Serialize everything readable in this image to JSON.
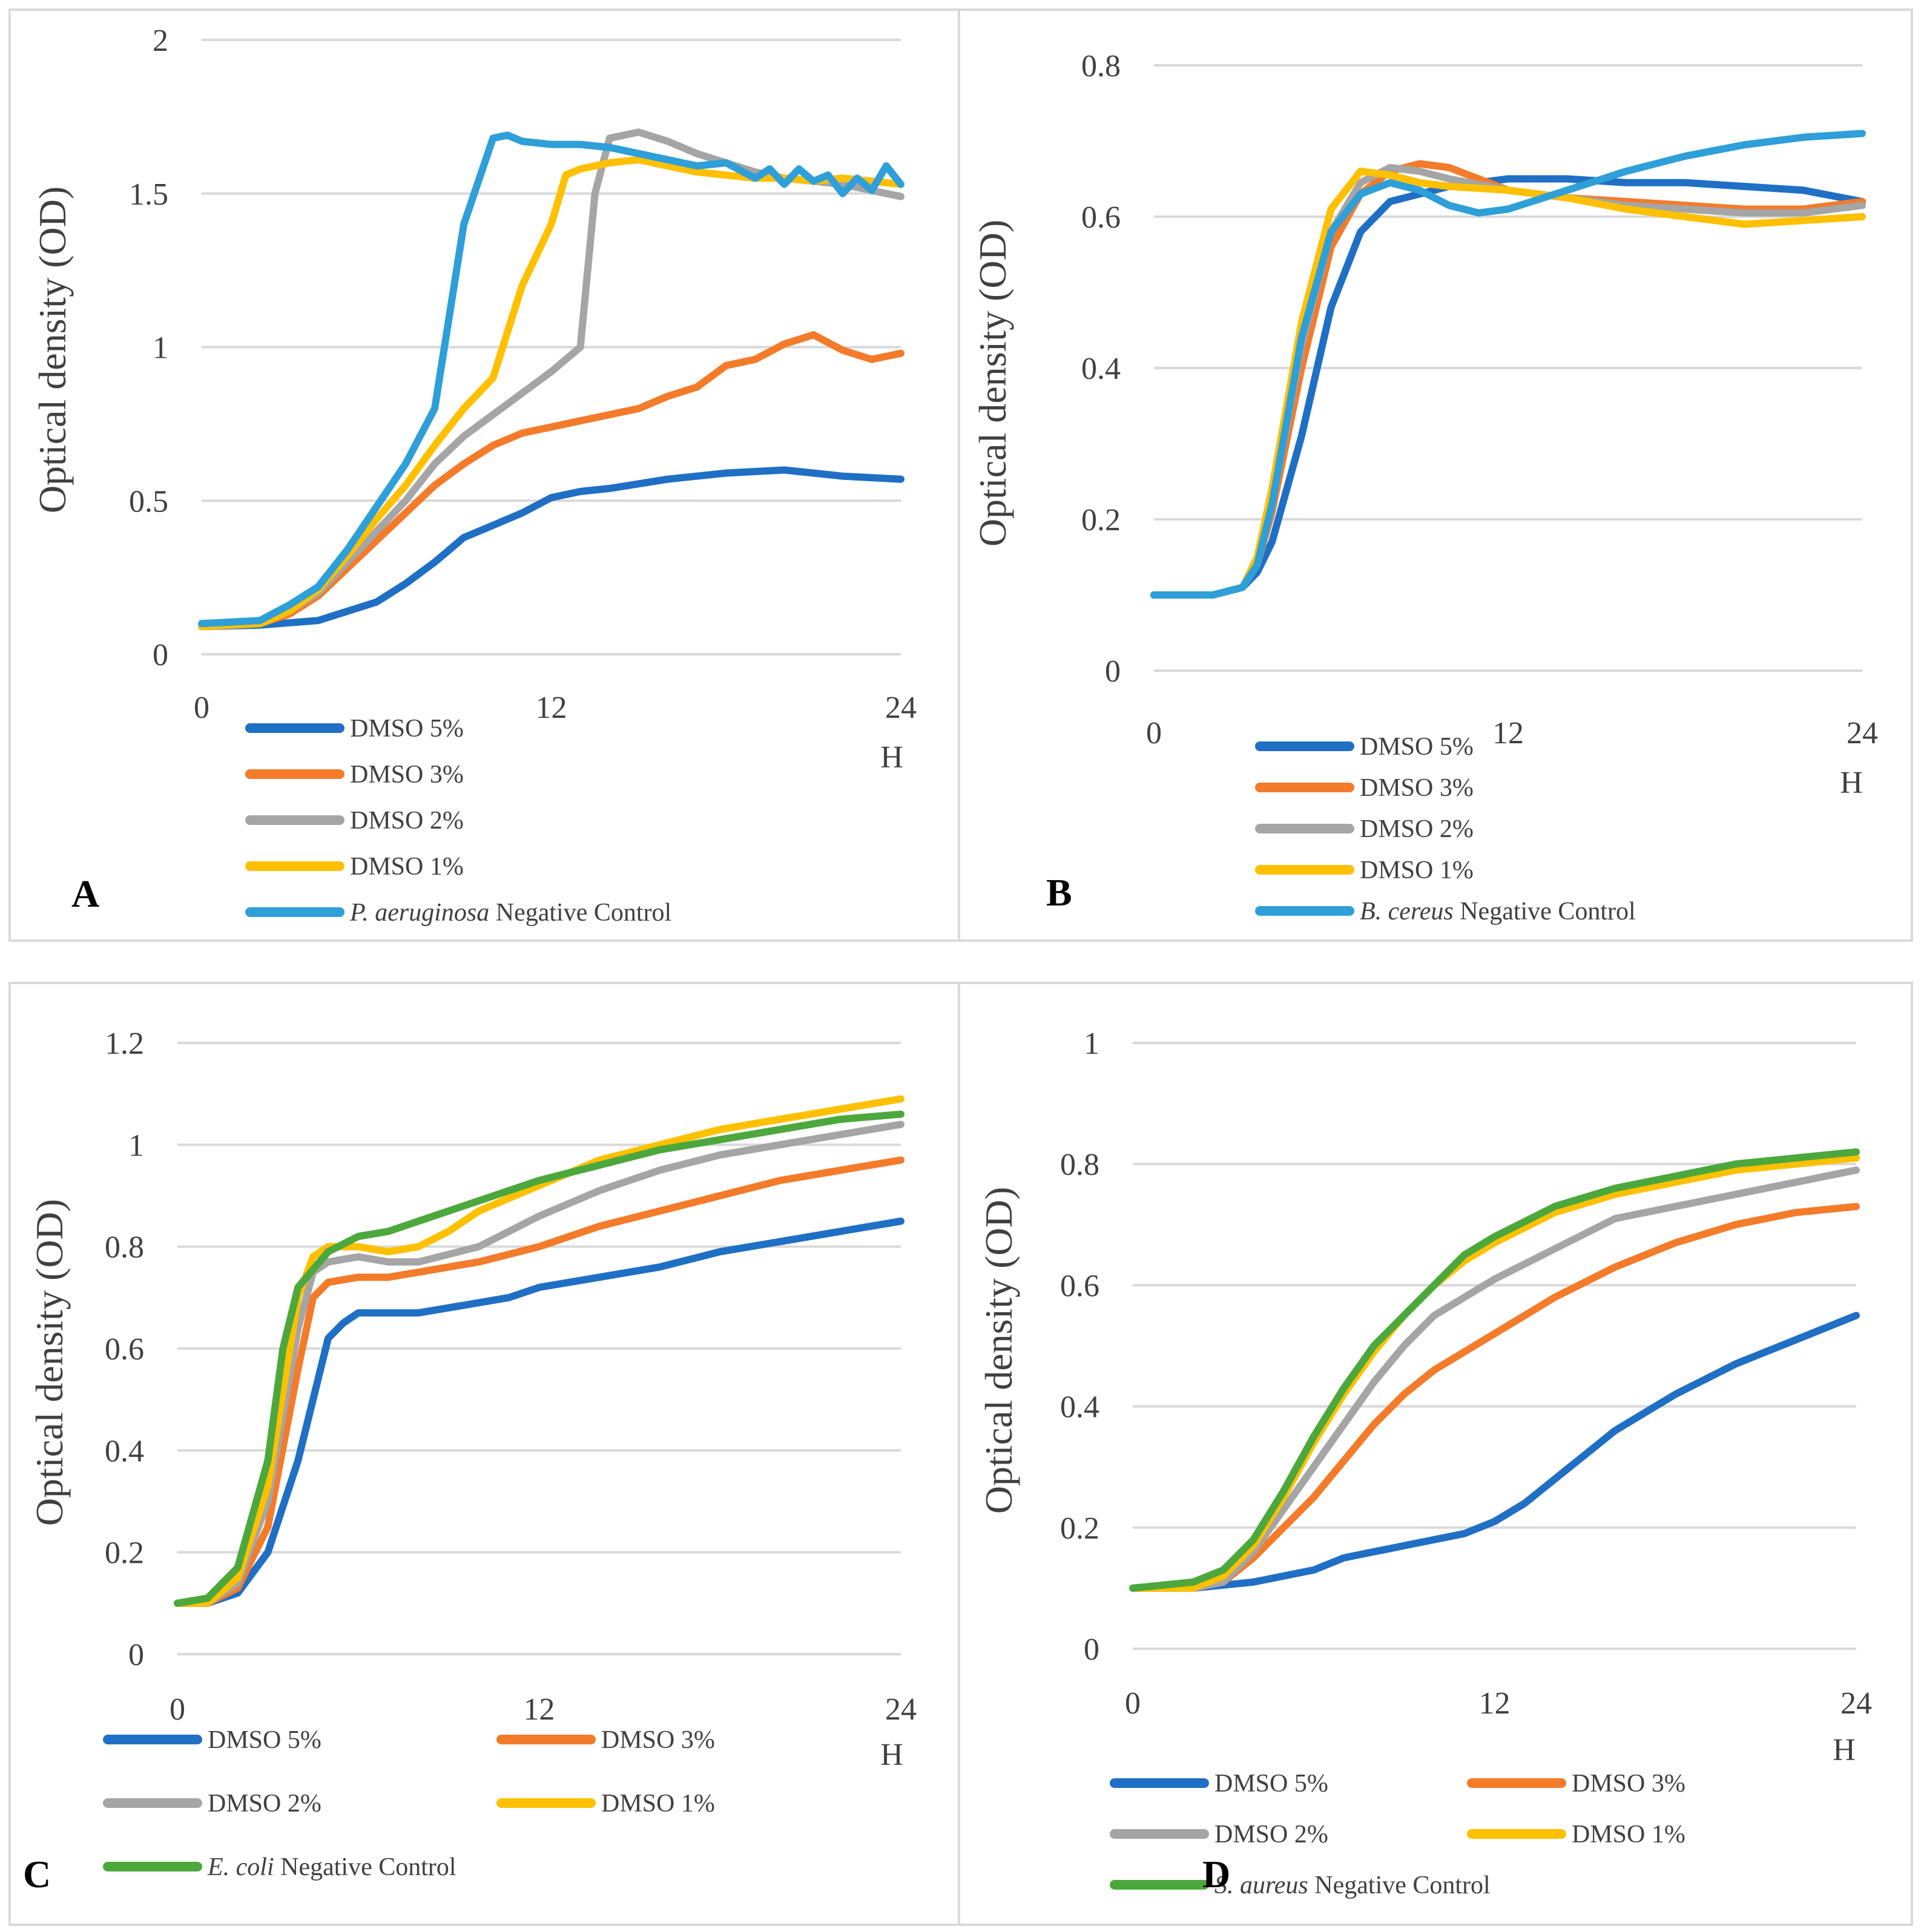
{
  "chart_data": [
    {
      "type": "line",
      "panel_label": "A",
      "ylabel": "Optical density (OD)",
      "xunit": "H",
      "xlim": [
        0,
        24
      ],
      "ylim": [
        0,
        2
      ],
      "xticks": [
        "0",
        "12",
        "24"
      ],
      "yticks": [
        "0",
        "0.5",
        "1",
        "1.5",
        "2"
      ],
      "series": [
        {
          "name": "DMSO 5%",
          "color": "#1f6fc5",
          "x": [
            0,
            2,
            4,
            6,
            7,
            8,
            9,
            10,
            11,
            12,
            13,
            14,
            16,
            18,
            20,
            22,
            24
          ],
          "values": [
            0.09,
            0.095,
            0.11,
            0.17,
            0.23,
            0.3,
            0.38,
            0.42,
            0.46,
            0.51,
            0.53,
            0.54,
            0.57,
            0.59,
            0.6,
            0.58,
            0.57
          ]
        },
        {
          "name": "DMSO 3%",
          "color": "#f47b2a",
          "x": [
            0,
            2,
            3,
            4,
            5,
            6,
            7,
            8,
            9,
            10,
            11,
            12,
            13,
            14,
            15,
            16,
            17,
            18,
            19,
            20,
            21,
            22,
            23,
            24
          ],
          "values": [
            0.09,
            0.1,
            0.13,
            0.19,
            0.28,
            0.37,
            0.46,
            0.55,
            0.62,
            0.68,
            0.72,
            0.74,
            0.76,
            0.78,
            0.8,
            0.84,
            0.87,
            0.94,
            0.96,
            1.01,
            1.04,
            0.99,
            0.96,
            0.98
          ]
        },
        {
          "name": "DMSO 2%",
          "color": "#a5a5a5",
          "x": [
            0,
            2,
            3,
            4,
            5,
            6,
            7,
            8,
            9,
            10,
            11,
            12,
            13,
            13.5,
            14,
            15,
            16,
            17,
            18,
            19,
            20,
            21,
            22,
            23,
            24
          ],
          "values": [
            0.09,
            0.1,
            0.14,
            0.2,
            0.3,
            0.4,
            0.5,
            0.62,
            0.71,
            0.78,
            0.85,
            0.92,
            1.0,
            1.5,
            1.68,
            1.7,
            1.67,
            1.63,
            1.6,
            1.57,
            1.55,
            1.54,
            1.53,
            1.51,
            1.49
          ]
        },
        {
          "name": "DMSO 1%",
          "color": "#ffc000",
          "x": [
            0,
            2,
            3,
            4,
            5,
            6,
            7,
            8,
            9,
            10,
            11,
            12,
            12.5,
            13,
            14,
            15,
            16,
            17,
            18,
            19,
            20,
            21,
            22,
            23,
            24
          ],
          "values": [
            0.09,
            0.1,
            0.14,
            0.21,
            0.32,
            0.44,
            0.55,
            0.68,
            0.8,
            0.9,
            1.2,
            1.4,
            1.56,
            1.58,
            1.6,
            1.61,
            1.59,
            1.57,
            1.56,
            1.55,
            1.55,
            1.54,
            1.55,
            1.54,
            1.53
          ]
        },
        {
          "name": "P. aeruginosa Negative Control",
          "name_italic": "P. aeruginosa",
          "name_rest": " Negative Control",
          "color": "#2e9fd8",
          "x": [
            0,
            2,
            3,
            4,
            5,
            6,
            7,
            8,
            9,
            10,
            10.5,
            11,
            12,
            13,
            14,
            15,
            16,
            17,
            18,
            19,
            19.5,
            20,
            20.5,
            21,
            21.5,
            22,
            22.5,
            23,
            23.5,
            24
          ],
          "values": [
            0.1,
            0.11,
            0.16,
            0.22,
            0.34,
            0.48,
            0.62,
            0.8,
            1.4,
            1.68,
            1.69,
            1.67,
            1.66,
            1.66,
            1.65,
            1.63,
            1.61,
            1.59,
            1.6,
            1.55,
            1.58,
            1.53,
            1.58,
            1.54,
            1.56,
            1.5,
            1.55,
            1.51,
            1.59,
            1.53
          ]
        }
      ]
    },
    {
      "type": "line",
      "panel_label": "B",
      "ylabel": "Optical density (OD)",
      "xunit": "H",
      "xlim": [
        0,
        24
      ],
      "ylim": [
        0,
        0.8
      ],
      "xticks": [
        "0",
        "12",
        "24"
      ],
      "yticks": [
        "0",
        "0.2",
        "0.4",
        "0.6",
        "0.8"
      ],
      "series": [
        {
          "name": "DMSO 5%",
          "color": "#1f6fc5",
          "x": [
            0,
            1,
            2,
            3,
            3.5,
            4,
            5,
            6,
            7,
            8,
            9,
            10,
            12,
            14,
            16,
            18,
            20,
            22,
            24
          ],
          "values": [
            0.1,
            0.1,
            0.1,
            0.11,
            0.13,
            0.17,
            0.31,
            0.48,
            0.58,
            0.62,
            0.63,
            0.64,
            0.65,
            0.65,
            0.645,
            0.645,
            0.64,
            0.635,
            0.62
          ]
        },
        {
          "name": "DMSO 3%",
          "color": "#f47b2a",
          "x": [
            0,
            1,
            2,
            3,
            3.5,
            4,
            5,
            6,
            7,
            8,
            9,
            10,
            11,
            12,
            14,
            16,
            18,
            20,
            22,
            24
          ],
          "values": [
            0.1,
            0.1,
            0.1,
            0.11,
            0.14,
            0.21,
            0.4,
            0.56,
            0.63,
            0.66,
            0.67,
            0.665,
            0.65,
            0.635,
            0.625,
            0.62,
            0.615,
            0.61,
            0.61,
            0.62
          ]
        },
        {
          "name": "DMSO 2%",
          "color": "#a5a5a5",
          "x": [
            0,
            1,
            2,
            3,
            3.5,
            4,
            5,
            6,
            7,
            8,
            9,
            10,
            12,
            14,
            16,
            18,
            20,
            22,
            24
          ],
          "values": [
            0.1,
            0.1,
            0.1,
            0.11,
            0.14,
            0.22,
            0.43,
            0.58,
            0.645,
            0.665,
            0.66,
            0.65,
            0.635,
            0.625,
            0.615,
            0.61,
            0.605,
            0.605,
            0.615
          ]
        },
        {
          "name": "DMSO 1%",
          "color": "#ffc000",
          "x": [
            0,
            1,
            2,
            3,
            3.5,
            4,
            5,
            6,
            7,
            8,
            9,
            10,
            12,
            14,
            16,
            18,
            20,
            22,
            24
          ],
          "values": [
            0.1,
            0.1,
            0.1,
            0.11,
            0.15,
            0.24,
            0.46,
            0.61,
            0.66,
            0.655,
            0.645,
            0.64,
            0.635,
            0.625,
            0.61,
            0.6,
            0.59,
            0.595,
            0.6
          ]
        },
        {
          "name": "B. cereus Negative Control",
          "name_italic": "B. cereus",
          "name_rest": " Negative Control",
          "color": "#2e9fd8",
          "x": [
            0,
            1,
            2,
            3,
            3.5,
            4,
            5,
            6,
            7,
            8,
            9,
            10,
            11,
            12,
            14,
            16,
            18,
            20,
            22,
            24
          ],
          "values": [
            0.1,
            0.1,
            0.1,
            0.11,
            0.14,
            0.22,
            0.44,
            0.58,
            0.63,
            0.645,
            0.635,
            0.615,
            0.605,
            0.61,
            0.635,
            0.66,
            0.68,
            0.695,
            0.705,
            0.71
          ]
        }
      ]
    },
    {
      "type": "line",
      "panel_label": "C",
      "ylabel": "Optical density (OD)",
      "xunit": "H",
      "xlim": [
        0,
        24
      ],
      "ylim": [
        0,
        1.2
      ],
      "xticks": [
        "0",
        "12",
        "24"
      ],
      "yticks": [
        "0",
        "0.2",
        "0.4",
        "0.6",
        "0.8",
        "1",
        "1.2"
      ],
      "series": [
        {
          "name": "DMSO 5%",
          "color": "#1f6fc5",
          "x": [
            0,
            1,
            2,
            3,
            4,
            5,
            5.5,
            6,
            7,
            8,
            9,
            10,
            11,
            12,
            14,
            16,
            18,
            20,
            22,
            24
          ],
          "values": [
            0.1,
            0.1,
            0.12,
            0.2,
            0.38,
            0.62,
            0.65,
            0.67,
            0.67,
            0.67,
            0.68,
            0.69,
            0.7,
            0.72,
            0.74,
            0.76,
            0.79,
            0.81,
            0.83,
            0.85
          ]
        },
        {
          "name": "DMSO 3%",
          "color": "#f47b2a",
          "x": [
            0,
            1,
            2,
            3,
            4,
            4.5,
            5,
            6,
            7,
            8,
            10,
            12,
            14,
            16,
            18,
            20,
            22,
            24
          ],
          "values": [
            0.1,
            0.1,
            0.13,
            0.25,
            0.56,
            0.7,
            0.73,
            0.74,
            0.74,
            0.75,
            0.77,
            0.8,
            0.84,
            0.87,
            0.9,
            0.93,
            0.95,
            0.97
          ]
        },
        {
          "name": "DMSO 2%",
          "color": "#a5a5a5",
          "x": [
            0,
            1,
            2,
            3,
            4,
            4.5,
            5,
            6,
            7,
            8,
            10,
            12,
            14,
            16,
            18,
            20,
            22,
            24
          ],
          "values": [
            0.1,
            0.1,
            0.14,
            0.3,
            0.64,
            0.75,
            0.77,
            0.78,
            0.77,
            0.77,
            0.8,
            0.86,
            0.91,
            0.95,
            0.98,
            1.0,
            1.02,
            1.04
          ]
        },
        {
          "name": "DMSO 1%",
          "color": "#ffc000",
          "x": [
            0,
            1,
            2,
            3,
            4,
            4.5,
            5,
            6,
            7,
            8,
            9,
            10,
            12,
            14,
            16,
            18,
            20,
            22,
            24
          ],
          "values": [
            0.1,
            0.1,
            0.15,
            0.33,
            0.7,
            0.78,
            0.8,
            0.8,
            0.79,
            0.8,
            0.83,
            0.87,
            0.92,
            0.97,
            1.0,
            1.03,
            1.05,
            1.07,
            1.09
          ]
        },
        {
          "name": "E. coli Negative Control",
          "name_italic": "E. coli",
          "name_rest": " Negative Control",
          "color": "#4ca83c",
          "x": [
            0,
            1,
            2,
            3,
            3.5,
            4,
            5,
            6,
            7,
            8,
            10,
            12,
            14,
            16,
            18,
            20,
            22,
            24
          ],
          "values": [
            0.1,
            0.11,
            0.17,
            0.38,
            0.6,
            0.72,
            0.79,
            0.82,
            0.83,
            0.85,
            0.89,
            0.93,
            0.96,
            0.99,
            1.01,
            1.03,
            1.05,
            1.06
          ]
        }
      ]
    },
    {
      "type": "line",
      "panel_label": "D",
      "ylabel": "Optical density (OD)",
      "xunit": "H",
      "xlim": [
        0,
        24
      ],
      "ylim": [
        0,
        1
      ],
      "xticks": [
        "0",
        "12",
        "24"
      ],
      "yticks": [
        "0",
        "0.2",
        "0.4",
        "0.6",
        "0.8",
        "1"
      ],
      "series": [
        {
          "name": "DMSO 5%",
          "color": "#1f6fc5",
          "x": [
            0,
            2,
            4,
            6,
            7,
            8,
            9,
            10,
            11,
            12,
            13,
            14,
            15,
            16,
            18,
            20,
            22,
            24
          ],
          "values": [
            0.1,
            0.1,
            0.11,
            0.13,
            0.15,
            0.16,
            0.17,
            0.18,
            0.19,
            0.21,
            0.24,
            0.28,
            0.32,
            0.36,
            0.42,
            0.47,
            0.51,
            0.55
          ]
        },
        {
          "name": "DMSO 3%",
          "color": "#f47b2a",
          "x": [
            0,
            2,
            3,
            4,
            5,
            6,
            7,
            8,
            9,
            10,
            11,
            12,
            14,
            16,
            18,
            20,
            22,
            24
          ],
          "values": [
            0.1,
            0.1,
            0.11,
            0.15,
            0.2,
            0.25,
            0.31,
            0.37,
            0.42,
            0.46,
            0.49,
            0.52,
            0.58,
            0.63,
            0.67,
            0.7,
            0.72,
            0.73
          ]
        },
        {
          "name": "DMSO 2%",
          "color": "#a5a5a5",
          "x": [
            0,
            2,
            3,
            4,
            5,
            6,
            7,
            8,
            9,
            10,
            11,
            12,
            14,
            16,
            18,
            20,
            22,
            24
          ],
          "values": [
            0.1,
            0.1,
            0.11,
            0.16,
            0.23,
            0.3,
            0.37,
            0.44,
            0.5,
            0.55,
            0.58,
            0.61,
            0.66,
            0.71,
            0.73,
            0.75,
            0.77,
            0.79
          ]
        },
        {
          "name": "DMSO 1%",
          "color": "#ffc000",
          "x": [
            0,
            2,
            3,
            4,
            5,
            6,
            7,
            8,
            9,
            10,
            11,
            12,
            14,
            16,
            18,
            20,
            22,
            24
          ],
          "values": [
            0.1,
            0.1,
            0.12,
            0.17,
            0.25,
            0.34,
            0.42,
            0.49,
            0.55,
            0.6,
            0.64,
            0.67,
            0.72,
            0.75,
            0.77,
            0.79,
            0.8,
            0.81
          ]
        },
        {
          "name": "S. aureus Negative Control",
          "name_italic": "S. aureus",
          "name_rest": " Negative Control",
          "color": "#4ca83c",
          "x": [
            0,
            2,
            3,
            4,
            5,
            6,
            7,
            8,
            9,
            10,
            11,
            12,
            14,
            16,
            18,
            20,
            22,
            24
          ],
          "values": [
            0.1,
            0.11,
            0.13,
            0.18,
            0.26,
            0.35,
            0.43,
            0.5,
            0.55,
            0.6,
            0.65,
            0.68,
            0.73,
            0.76,
            0.78,
            0.8,
            0.81,
            0.82
          ]
        }
      ]
    }
  ]
}
